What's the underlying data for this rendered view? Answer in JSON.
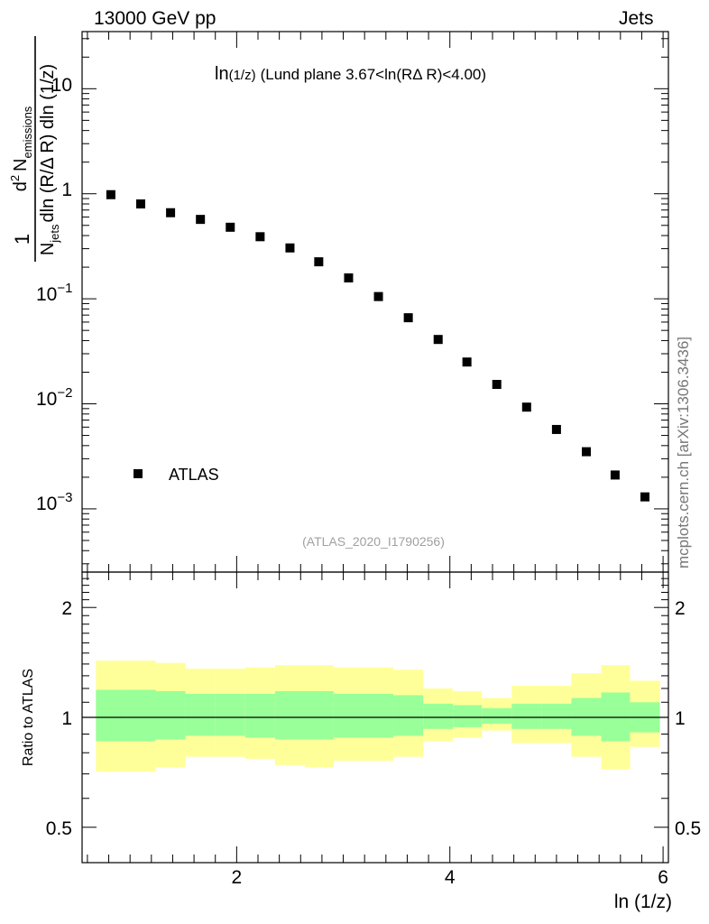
{
  "header": {
    "left": "13000 GeV pp",
    "right": "Jets"
  },
  "side_label": "mcplots.cern.ch [arXiv:1306.3436]",
  "chart_data": [
    {
      "type": "scatter",
      "title_main": "ln",
      "title_sub": "(1/z)",
      "title_rest": "(Lund plane 3.67<ln(RΔ R)<4.00)",
      "ylabel_parts": {
        "numerator": "d",
        "numerator_sup": "2",
        "numerator_n": "N",
        "numerator_sub": "emissions",
        "one": "1",
        "denominator_n": "N",
        "denominator_sub": "jets",
        "denominator_rest": "dln (R/Δ R) dln (1/z)"
      },
      "yscale": "log",
      "ylim": [
        0.00025,
        35
      ],
      "xlim": [
        0.55,
        6.05
      ],
      "ytick_labels": {
        "ten": "10",
        "one": "1",
        "base": "10",
        "exp_m1": "−1",
        "exp_m2": "−2",
        "exp_m3": "−3"
      },
      "ytick_values": [
        10,
        1,
        0.1,
        0.01,
        0.001
      ],
      "legend": {
        "label": "ATLAS",
        "placement": "bottom-left"
      },
      "watermark": "(ATLAS_2020_I1790256)",
      "series": [
        {
          "name": "ATLAS",
          "marker": "square",
          "x": [
            0.82,
            1.1,
            1.38,
            1.66,
            1.94,
            2.22,
            2.5,
            2.77,
            3.05,
            3.33,
            3.61,
            3.89,
            4.16,
            4.44,
            4.72,
            5.0,
            5.28,
            5.55,
            5.83
          ],
          "y": [
            0.98,
            0.8,
            0.66,
            0.57,
            0.48,
            0.39,
            0.305,
            0.225,
            0.158,
            0.105,
            0.066,
            0.041,
            0.025,
            0.0153,
            0.0093,
            0.0057,
            0.0035,
            0.0021,
            0.0013
          ]
        }
      ]
    },
    {
      "type": "area",
      "ylabel": "Ratio to ATLAS",
      "xlabel": "ln (1/z)",
      "xlim": [
        0.55,
        6.05
      ],
      "ylim": [
        0.4,
        2.5
      ],
      "xticks": [
        2,
        4,
        6
      ],
      "xtick_labels": [
        "2",
        "4",
        "6"
      ],
      "ytick_values": [
        0.5,
        1,
        2
      ],
      "ytick_labels": [
        "0.5",
        "1",
        "2"
      ],
      "reference_line": 1,
      "colors": {
        "inner_band": "#99ff99",
        "outer_band": "#ffff99"
      },
      "bins": [
        {
          "lo": 0.68,
          "hi": 0.96,
          "inner": [
            0.86,
            1.19
          ],
          "outer": [
            0.71,
            1.43
          ]
        },
        {
          "lo": 0.96,
          "hi": 1.24,
          "inner": [
            0.86,
            1.19
          ],
          "outer": [
            0.71,
            1.43
          ]
        },
        {
          "lo": 1.24,
          "hi": 1.52,
          "inner": [
            0.87,
            1.18
          ],
          "outer": [
            0.73,
            1.41
          ]
        },
        {
          "lo": 1.52,
          "hi": 1.8,
          "inner": [
            0.89,
            1.16
          ],
          "outer": [
            0.78,
            1.36
          ]
        },
        {
          "lo": 1.8,
          "hi": 2.08,
          "inner": [
            0.89,
            1.16
          ],
          "outer": [
            0.78,
            1.36
          ]
        },
        {
          "lo": 2.08,
          "hi": 2.36,
          "inner": [
            0.88,
            1.16
          ],
          "outer": [
            0.77,
            1.37
          ]
        },
        {
          "lo": 2.36,
          "hi": 2.64,
          "inner": [
            0.87,
            1.18
          ],
          "outer": [
            0.74,
            1.39
          ]
        },
        {
          "lo": 2.64,
          "hi": 2.91,
          "inner": [
            0.87,
            1.18
          ],
          "outer": [
            0.73,
            1.39
          ]
        },
        {
          "lo": 2.91,
          "hi": 3.19,
          "inner": [
            0.88,
            1.16
          ],
          "outer": [
            0.76,
            1.37
          ]
        },
        {
          "lo": 3.19,
          "hi": 3.47,
          "inner": [
            0.88,
            1.16
          ],
          "outer": [
            0.76,
            1.37
          ]
        },
        {
          "lo": 3.47,
          "hi": 3.75,
          "inner": [
            0.89,
            1.15
          ],
          "outer": [
            0.78,
            1.35
          ]
        },
        {
          "lo": 3.75,
          "hi": 4.03,
          "inner": [
            0.93,
            1.09
          ],
          "outer": [
            0.86,
            1.2
          ]
        },
        {
          "lo": 4.03,
          "hi": 4.3,
          "inner": [
            0.94,
            1.08
          ],
          "outer": [
            0.88,
            1.18
          ]
        },
        {
          "lo": 4.3,
          "hi": 4.58,
          "inner": [
            0.96,
            1.06
          ],
          "outer": [
            0.92,
            1.13
          ]
        },
        {
          "lo": 4.58,
          "hi": 4.86,
          "inner": [
            0.93,
            1.09
          ],
          "outer": [
            0.85,
            1.22
          ]
        },
        {
          "lo": 4.86,
          "hi": 5.14,
          "inner": [
            0.93,
            1.09
          ],
          "outer": [
            0.85,
            1.22
          ]
        },
        {
          "lo": 5.14,
          "hi": 5.42,
          "inner": [
            0.89,
            1.13
          ],
          "outer": [
            0.78,
            1.32
          ]
        },
        {
          "lo": 5.42,
          "hi": 5.69,
          "inner": [
            0.86,
            1.17
          ],
          "outer": [
            0.72,
            1.39
          ]
        },
        {
          "lo": 5.69,
          "hi": 5.97,
          "inner": [
            0.91,
            1.1
          ],
          "outer": [
            0.83,
            1.26
          ]
        }
      ]
    }
  ]
}
